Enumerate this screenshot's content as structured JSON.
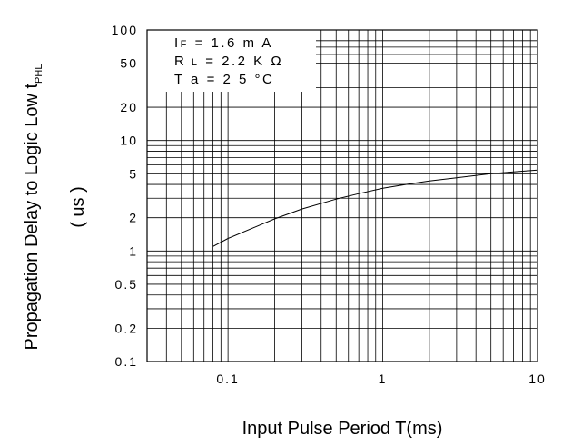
{
  "chart_data": {
    "type": "line",
    "title": "",
    "xlabel": "Input Pulse Period T(ms)",
    "ylabel": "Propagation Delay to Logic Low t",
    "ylabel_subscript": "PHL",
    "ylabel_unit": "( us )",
    "xscale": "log",
    "yscale": "log",
    "xlim": [
      0.03,
      10
    ],
    "ylim": [
      0.1,
      100
    ],
    "grid": true,
    "x_ticks": [
      {
        "value": 0.1,
        "label": "0.1"
      },
      {
        "value": 1,
        "label": "1"
      },
      {
        "value": 10,
        "label": "10"
      }
    ],
    "y_ticks": [
      {
        "value": 100,
        "label": "100"
      },
      {
        "value": 50,
        "label": "50"
      },
      {
        "value": 20,
        "label": "20"
      },
      {
        "value": 10,
        "label": "10"
      },
      {
        "value": 5,
        "label": "5"
      },
      {
        "value": 2,
        "label": "2"
      },
      {
        "value": 1,
        "label": "1"
      },
      {
        "value": 0.5,
        "label": "0.5"
      },
      {
        "value": 0.2,
        "label": "0.2"
      },
      {
        "value": 0.1,
        "label": "0.1"
      }
    ],
    "annotations": {
      "line1_main": "I",
      "line1_sub": "F",
      "line1_rest": " = 1.6 m A",
      "line2_main": "R",
      "line2_sub": " L",
      "line2_rest": " = 2.2 K Ω",
      "line3": "T a = 2 5 °C"
    },
    "series": [
      {
        "x": [
          0.08,
          0.1,
          0.15,
          0.2,
          0.3,
          0.5,
          0.7,
          1,
          1.5,
          2,
          3,
          5,
          7,
          10
        ],
        "y": [
          1.1,
          1.3,
          1.65,
          1.95,
          2.4,
          2.95,
          3.3,
          3.7,
          4.05,
          4.3,
          4.6,
          5.0,
          5.2,
          5.4
        ]
      }
    ]
  }
}
